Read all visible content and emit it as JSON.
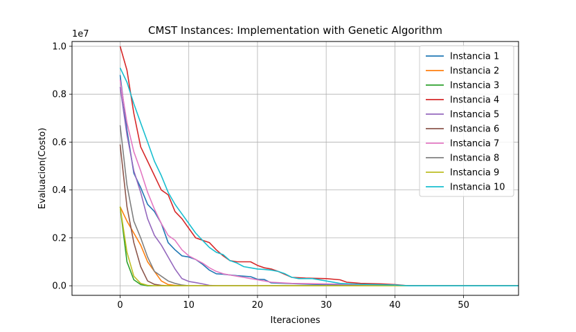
{
  "chart_data": {
    "type": "line",
    "title": "CMST Instances: Implementation with Genetic Algorithm",
    "xlabel": "Iteraciones",
    "ylabel": "Evaluacion(Costo)",
    "y_offset_label": "1e7",
    "xlim": [
      -7,
      58
    ],
    "ylim": [
      -400000,
      10200000
    ],
    "x_ticks": [
      0,
      10,
      20,
      30,
      40,
      50
    ],
    "y_ticks": [
      0,
      2000000,
      4000000,
      6000000,
      8000000,
      10000000
    ],
    "y_tick_labels": [
      "0.0",
      "0.2",
      "0.4",
      "0.6",
      "0.8",
      "1.0"
    ],
    "grid": true,
    "legend_position": "upper right",
    "series": [
      {
        "name": "Instancia 1",
        "color": "#1f77b4",
        "x": [
          0,
          1,
          2,
          3,
          4,
          5,
          6,
          7,
          8,
          9,
          10,
          11,
          12,
          13,
          14,
          15,
          16,
          17,
          18,
          19,
          20,
          21,
          22,
          24,
          26,
          28,
          30,
          32,
          35,
          40,
          45,
          58
        ],
        "y": [
          8800000,
          6500000,
          4700000,
          4100000,
          3400000,
          3100000,
          2600000,
          1800000,
          1500000,
          1250000,
          1200000,
          1100000,
          900000,
          650000,
          500000,
          480000,
          450000,
          420000,
          400000,
          380000,
          270000,
          260000,
          120000,
          100000,
          80000,
          60000,
          50000,
          40000,
          30000,
          10000,
          0,
          0
        ]
      },
      {
        "name": "Instancia 2",
        "color": "#ff7f0e",
        "x": [
          0,
          1,
          2,
          3,
          4,
          5,
          6,
          7,
          8,
          9,
          10,
          58
        ],
        "y": [
          3300000,
          2700000,
          2200000,
          1700000,
          1000000,
          600000,
          200000,
          50000,
          20000,
          0,
          0,
          0
        ]
      },
      {
        "name": "Instancia 3",
        "color": "#2ca02c",
        "x": [
          0,
          1,
          2,
          3,
          4,
          5,
          58
        ],
        "y": [
          3300000,
          1000000,
          250000,
          50000,
          0,
          0,
          0
        ]
      },
      {
        "name": "Instancia 4",
        "color": "#d62728",
        "x": [
          0,
          1,
          2,
          3,
          4,
          5,
          6,
          7,
          8,
          9,
          10,
          11,
          12,
          13,
          14,
          15,
          16,
          17,
          18,
          19,
          20,
          21,
          22,
          23,
          25,
          27,
          30,
          32,
          33,
          35,
          38,
          40,
          42,
          58
        ],
        "y": [
          10000000,
          9000000,
          7200000,
          5800000,
          5200000,
          4600000,
          4000000,
          3800000,
          3100000,
          2800000,
          2400000,
          2000000,
          1900000,
          1800000,
          1500000,
          1250000,
          1050000,
          1000000,
          1000000,
          1000000,
          850000,
          750000,
          700000,
          600000,
          350000,
          320000,
          300000,
          250000,
          150000,
          100000,
          80000,
          50000,
          0,
          0
        ]
      },
      {
        "name": "Instancia 5",
        "color": "#9467bd",
        "x": [
          0,
          1,
          2,
          3,
          4,
          5,
          6,
          7,
          8,
          9,
          10,
          11,
          12,
          13,
          14,
          58
        ],
        "y": [
          8300000,
          6300000,
          4800000,
          3900000,
          2800000,
          2100000,
          1700000,
          1200000,
          700000,
          300000,
          180000,
          130000,
          80000,
          20000,
          0,
          0
        ]
      },
      {
        "name": "Instancia 6",
        "color": "#8c564b",
        "x": [
          0,
          1,
          2,
          3,
          4,
          5,
          6,
          7,
          8,
          58
        ],
        "y": [
          5900000,
          3300000,
          1800000,
          800000,
          200000,
          60000,
          20000,
          0,
          0,
          0
        ]
      },
      {
        "name": "Instancia 7",
        "color": "#e377c2",
        "x": [
          0,
          1,
          2,
          3,
          4,
          5,
          6,
          7,
          8,
          9,
          10,
          11,
          12,
          13,
          14,
          15,
          16,
          17,
          18,
          19,
          20,
          22,
          25,
          30,
          35,
          38,
          40,
          58
        ],
        "y": [
          8600000,
          6800000,
          5600000,
          4800000,
          3900000,
          3200000,
          2600000,
          2100000,
          1900000,
          1500000,
          1250000,
          1100000,
          950000,
          750000,
          600000,
          500000,
          450000,
          400000,
          350000,
          300000,
          250000,
          150000,
          100000,
          80000,
          50000,
          30000,
          0,
          0
        ]
      },
      {
        "name": "Instancia 8",
        "color": "#7f7f7f",
        "x": [
          0,
          1,
          2,
          3,
          4,
          5,
          6,
          7,
          8,
          9,
          10,
          58
        ],
        "y": [
          6700000,
          4200000,
          2700000,
          2000000,
          1200000,
          600000,
          400000,
          200000,
          100000,
          30000,
          0,
          0
        ]
      },
      {
        "name": "Instancia 9",
        "color": "#bcbd22",
        "x": [
          0,
          1,
          2,
          3,
          4,
          5,
          58
        ],
        "y": [
          3300000,
          1400000,
          400000,
          100000,
          20000,
          0,
          0
        ]
      },
      {
        "name": "Instancia 10",
        "color": "#17becf",
        "x": [
          0,
          1,
          2,
          3,
          4,
          5,
          6,
          7,
          8,
          9,
          10,
          11,
          12,
          13,
          14,
          15,
          16,
          17,
          18,
          19,
          20,
          21,
          22,
          23,
          24,
          25,
          26,
          28,
          30,
          32,
          35,
          40,
          42,
          58
        ],
        "y": [
          9100000,
          8500000,
          7600000,
          6800000,
          6000000,
          5200000,
          4600000,
          3900000,
          3400000,
          3000000,
          2600000,
          2200000,
          1900000,
          1600000,
          1400000,
          1300000,
          1050000,
          950000,
          800000,
          750000,
          700000,
          680000,
          650000,
          600000,
          500000,
          350000,
          300000,
          300000,
          200000,
          100000,
          60000,
          30000,
          0,
          0
        ]
      }
    ]
  }
}
